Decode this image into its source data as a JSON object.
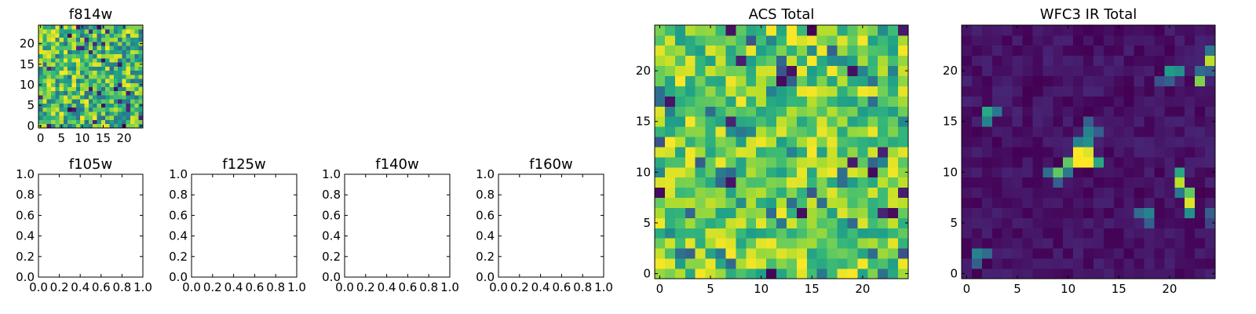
{
  "figure": {
    "colormap": "viridis",
    "colors": {
      "frame": "#000000",
      "background": "#ffffff",
      "viridis_stops": [
        "#440154",
        "#482878",
        "#3e4989",
        "#31688e",
        "#26828e",
        "#1f9e89",
        "#35b779",
        "#6ece58",
        "#b5de2b",
        "#fde725"
      ]
    }
  },
  "chart_data": [
    {
      "id": "f814w",
      "type": "heatmap",
      "title": "f814w",
      "grid_size": 25,
      "xlim": [
        -0.5,
        24.5
      ],
      "ylim": [
        -0.5,
        24.5
      ],
      "xticks": [
        0,
        5,
        10,
        15,
        20
      ],
      "yticks": [
        0,
        5,
        10,
        15,
        20
      ],
      "xtick_labels": [
        "0",
        "5",
        "10",
        "15",
        "20"
      ],
      "ytick_labels": [
        "0",
        "5",
        "10",
        "15",
        "20"
      ],
      "pattern": "uniform noise",
      "value_range": [
        0.0,
        1.0
      ]
    },
    {
      "id": "f105w",
      "type": "heatmap",
      "title": "f105w",
      "empty": true,
      "xlim": [
        0.0,
        1.0
      ],
      "ylim": [
        0.0,
        1.0
      ],
      "xticks": [
        0.0,
        0.2,
        0.4,
        0.6,
        0.8,
        1.0
      ],
      "yticks": [
        0.0,
        0.2,
        0.4,
        0.6,
        0.8,
        1.0
      ],
      "xtick_labels": [
        "0.0",
        "0.2",
        "0.4",
        "0.6",
        "0.8",
        "1.0"
      ],
      "ytick_labels": [
        "0.0",
        "0.2",
        "0.4",
        "0.6",
        "0.8",
        "1.0"
      ]
    },
    {
      "id": "f125w",
      "type": "heatmap",
      "title": "f125w",
      "empty": true,
      "xlim": [
        0.0,
        1.0
      ],
      "ylim": [
        0.0,
        1.0
      ],
      "xticks": [
        0.0,
        0.2,
        0.4,
        0.6,
        0.8,
        1.0
      ],
      "yticks": [
        0.0,
        0.2,
        0.4,
        0.6,
        0.8,
        1.0
      ],
      "xtick_labels": [
        "0.0",
        "0.2",
        "0.4",
        "0.6",
        "0.8",
        "1.0"
      ],
      "ytick_labels": [
        "0.0",
        "0.2",
        "0.4",
        "0.6",
        "0.8",
        "1.0"
      ]
    },
    {
      "id": "f140w",
      "type": "heatmap",
      "title": "f140w",
      "empty": true,
      "xlim": [
        0.0,
        1.0
      ],
      "ylim": [
        0.0,
        1.0
      ],
      "xticks": [
        0.0,
        0.2,
        0.4,
        0.6,
        0.8,
        1.0
      ],
      "yticks": [
        0.0,
        0.2,
        0.4,
        0.6,
        0.8,
        1.0
      ],
      "xtick_labels": [
        "0.0",
        "0.2",
        "0.4",
        "0.6",
        "0.8",
        "1.0"
      ],
      "ytick_labels": [
        "0.0",
        "0.2",
        "0.4",
        "0.6",
        "0.8",
        "1.0"
      ]
    },
    {
      "id": "f160w",
      "type": "heatmap",
      "title": "f160w",
      "empty": true,
      "xlim": [
        0.0,
        1.0
      ],
      "ylim": [
        0.0,
        1.0
      ],
      "xticks": [
        0.0,
        0.2,
        0.4,
        0.6,
        0.8,
        1.0
      ],
      "yticks": [
        0.0,
        0.2,
        0.4,
        0.6,
        0.8,
        1.0
      ],
      "xtick_labels": [
        "0.0",
        "0.2",
        "0.4",
        "0.6",
        "0.8",
        "1.0"
      ],
      "ytick_labels": [
        "0.0",
        "0.2",
        "0.4",
        "0.6",
        "0.8",
        "1.0"
      ]
    },
    {
      "id": "acs_total",
      "type": "heatmap",
      "title": "ACS Total",
      "grid_size": 25,
      "xlim": [
        -0.5,
        24.5
      ],
      "ylim": [
        -0.5,
        24.5
      ],
      "xticks": [
        0,
        5,
        10,
        15,
        20
      ],
      "yticks": [
        0,
        5,
        10,
        15,
        20
      ],
      "xtick_labels": [
        "0",
        "5",
        "10",
        "15",
        "20"
      ],
      "ytick_labels": [
        "0",
        "5",
        "10",
        "15",
        "20"
      ],
      "pattern": "noise, mostly green-yellow",
      "value_range": [
        0.0,
        1.0
      ]
    },
    {
      "id": "wfc3_ir_total",
      "type": "heatmap",
      "title": "WFC3 IR Total",
      "grid_size": 25,
      "xlim": [
        -0.5,
        24.5
      ],
      "ylim": [
        -0.5,
        24.5
      ],
      "xticks": [
        0,
        5,
        10,
        15,
        20
      ],
      "yticks": [
        0,
        5,
        10,
        15,
        20
      ],
      "xtick_labels": [
        "0",
        "5",
        "10",
        "15",
        "20"
      ],
      "ytick_labels": [
        "0",
        "5",
        "10",
        "15",
        "20"
      ],
      "pattern": "dark background with bright sources",
      "value_range": [
        0.0,
        1.0
      ],
      "sources": [
        {
          "x": 11,
          "y": 11,
          "v": 1.0
        },
        {
          "x": 12,
          "y": 11,
          "v": 1.0
        },
        {
          "x": 11,
          "y": 12,
          "v": 1.0
        },
        {
          "x": 12,
          "y": 12,
          "v": 0.95
        },
        {
          "x": 10,
          "y": 11,
          "v": 0.75
        },
        {
          "x": 13,
          "y": 11,
          "v": 0.6
        },
        {
          "x": 11,
          "y": 13,
          "v": 0.45
        },
        {
          "x": 12,
          "y": 13,
          "v": 0.5
        },
        {
          "x": 12,
          "y": 14,
          "v": 0.45
        },
        {
          "x": 13,
          "y": 14,
          "v": 0.3
        },
        {
          "x": 12,
          "y": 15,
          "v": 0.3
        },
        {
          "x": 9,
          "y": 10,
          "v": 0.75
        },
        {
          "x": 8,
          "y": 10,
          "v": 0.35
        },
        {
          "x": 9,
          "y": 9,
          "v": 0.3
        },
        {
          "x": 10,
          "y": 10,
          "v": 0.4
        },
        {
          "x": 2,
          "y": 16,
          "v": 0.6
        },
        {
          "x": 2,
          "y": 15,
          "v": 0.45
        },
        {
          "x": 3,
          "y": 16,
          "v": 0.4
        },
        {
          "x": 20,
          "y": 20,
          "v": 0.55
        },
        {
          "x": 21,
          "y": 20,
          "v": 0.5
        },
        {
          "x": 20,
          "y": 19,
          "v": 0.3
        },
        {
          "x": 19,
          "y": 19,
          "v": 0.25
        },
        {
          "x": 24,
          "y": 21,
          "v": 0.9
        },
        {
          "x": 24,
          "y": 22,
          "v": 0.4
        },
        {
          "x": 24,
          "y": 20,
          "v": 0.3
        },
        {
          "x": 23,
          "y": 19,
          "v": 0.8
        },
        {
          "x": 23,
          "y": 20,
          "v": 0.35
        },
        {
          "x": 21,
          "y": 10,
          "v": 0.6
        },
        {
          "x": 21,
          "y": 9,
          "v": 0.9
        },
        {
          "x": 22,
          "y": 8,
          "v": 0.75
        },
        {
          "x": 22,
          "y": 7,
          "v": 0.95
        },
        {
          "x": 22,
          "y": 6,
          "v": 0.5
        },
        {
          "x": 21,
          "y": 8,
          "v": 0.4
        },
        {
          "x": 18,
          "y": 6,
          "v": 0.45
        },
        {
          "x": 17,
          "y": 6,
          "v": 0.35
        },
        {
          "x": 18,
          "y": 5,
          "v": 0.3
        },
        {
          "x": 1,
          "y": 2,
          "v": 0.45
        },
        {
          "x": 2,
          "y": 2,
          "v": 0.35
        },
        {
          "x": 1,
          "y": 1,
          "v": 0.3
        },
        {
          "x": 24,
          "y": 6,
          "v": 0.3
        },
        {
          "x": 24,
          "y": 5,
          "v": 0.2
        }
      ]
    }
  ]
}
